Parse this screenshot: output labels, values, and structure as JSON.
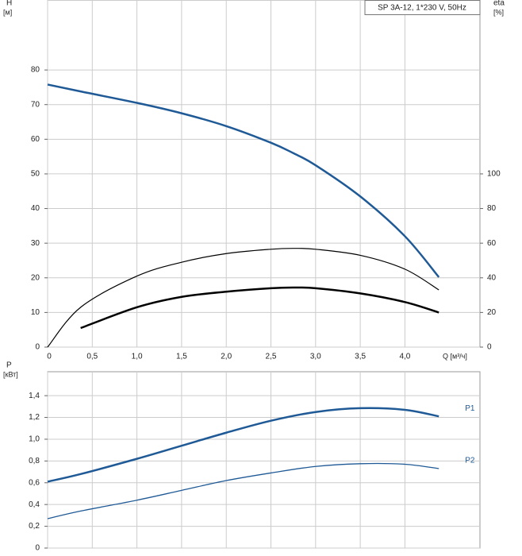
{
  "chart_data": [
    {
      "type": "line",
      "legend_box": "SP 3A-12, 1*230 V, 50Hz",
      "ylabel": "H",
      "ylabel_unit": "[м]",
      "y2label": "eta",
      "y2label_unit": "[%]",
      "xlabel": "Q [м³/ч]",
      "x": [
        0,
        0.37,
        1.0,
        1.5,
        2.0,
        2.5,
        2.75,
        3.0,
        3.5,
        4.0,
        4.38
      ],
      "series": [
        {
          "color": "#1f5a96",
          "line_width": 2.5,
          "values": [
            75.8,
            73.8,
            70.5,
            67.5,
            63.8,
            59,
            56,
            52.5,
            43.5,
            32,
            20.2
          ]
        },
        {
          "color": "#000000",
          "line_width": 1.2,
          "axis": "y2",
          "values": [
            0,
            23,
            41,
            49,
            54,
            56.5,
            57,
            56.5,
            53,
            45,
            33
          ]
        },
        {
          "color": "#000000",
          "line_width": 2.5,
          "values": [
            null,
            5.5,
            11.5,
            14.5,
            16,
            17,
            17.2,
            17,
            15.5,
            13,
            10
          ]
        }
      ],
      "xlim": [
        0,
        4.84
      ],
      "xticks": [
        0,
        {
          "value": 0.5,
          "label": "0,5"
        },
        {
          "value": 1.0,
          "label": "1,0"
        },
        {
          "value": 1.5,
          "label": "1,5"
        },
        {
          "value": 2.0,
          "label": "2,0"
        },
        {
          "value": 2.5,
          "label": "2,5"
        },
        {
          "value": 3.0,
          "label": "3,0"
        },
        {
          "value": 3.5,
          "label": "3,5"
        },
        {
          "value": 4.0,
          "label": "4,0"
        }
      ],
      "ylim": [
        0,
        100.2
      ],
      "yticks": [
        0,
        10,
        20,
        30,
        40,
        50,
        60,
        70,
        80
      ],
      "y2lim": [
        0,
        200.4
      ],
      "y2ticks": [
        0,
        20,
        40,
        60,
        80,
        100
      ],
      "grid": true
    },
    {
      "type": "line",
      "ylabel": "P",
      "ylabel_unit": "[кВт]",
      "x": [
        0,
        0.37,
        1.0,
        1.5,
        2.0,
        2.5,
        3.0,
        3.5,
        4.0,
        4.38
      ],
      "series": [
        {
          "name": "P1",
          "color": "#1f5a96",
          "line_width": 2.5,
          "values": [
            0.61,
            0.68,
            0.82,
            0.94,
            1.06,
            1.17,
            1.25,
            1.285,
            1.27,
            1.21
          ]
        },
        {
          "name": "P2",
          "color": "#1f5a96",
          "line_width": 1.3,
          "values": [
            0.27,
            0.34,
            0.44,
            0.53,
            0.62,
            0.69,
            0.75,
            0.775,
            0.77,
            0.73
          ]
        }
      ],
      "xlim": [
        0,
        4.84
      ],
      "ylim": [
        0,
        1.62
      ],
      "yticks": [
        0,
        {
          "value": 0.2,
          "label": "0,2"
        },
        {
          "value": 0.4,
          "label": "0,4"
        },
        {
          "value": 0.6,
          "label": "0,6"
        },
        {
          "value": 0.8,
          "label": "0,8"
        },
        {
          "value": 1.0,
          "label": "1,0"
        },
        {
          "value": 1.2,
          "label": "1,2"
        },
        {
          "value": 1.4,
          "label": "1,4"
        }
      ],
      "grid": true
    }
  ]
}
